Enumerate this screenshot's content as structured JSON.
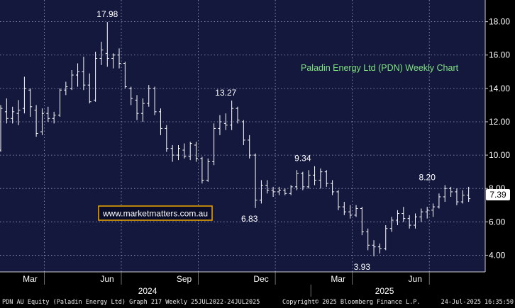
{
  "chart_data": {
    "type": "ohlc",
    "title": "Paladin Energy Ltd (PDN) Weekly Chart",
    "ylim": [
      3.0,
      19.3
    ],
    "y_ticks": [
      {
        "value": 4,
        "label": "4.00"
      },
      {
        "value": 6,
        "label": "6.00"
      },
      {
        "value": 8,
        "label": "8.00"
      },
      {
        "value": 10,
        "label": "10.00"
      },
      {
        "value": 12,
        "label": "12.00"
      },
      {
        "value": 14,
        "label": "14.00"
      },
      {
        "value": 16,
        "label": "16.00"
      },
      {
        "value": 18,
        "label": "18.00"
      }
    ],
    "x_month_labels": [
      {
        "index": 7,
        "label": "Mar"
      },
      {
        "index": 20,
        "label": "Jun"
      },
      {
        "index": 33,
        "label": "Sep"
      },
      {
        "index": 46,
        "label": "Dec"
      },
      {
        "index": 59,
        "label": "Mar"
      },
      {
        "index": 72,
        "label": "Jun"
      }
    ],
    "x_year_labels": [
      {
        "index": 23,
        "label": "2024"
      },
      {
        "index": 63,
        "label": "2025"
      }
    ],
    "last_price": "7.39",
    "annotations": [
      {
        "index": 18,
        "value": 17.98,
        "label": "17.98"
      },
      {
        "index": 38,
        "value": 13.27,
        "label": "13.27"
      },
      {
        "index": 42,
        "value": 6.83,
        "label": "6.83"
      },
      {
        "index": 51,
        "value": 9.34,
        "label": "9.34"
      },
      {
        "index": 61,
        "value": 3.93,
        "label": "3.93"
      },
      {
        "index": 72,
        "value": 8.2,
        "label": "8.20"
      }
    ],
    "bars": [
      {
        "o": 10.3,
        "h": 13.0,
        "l": 10.2,
        "c": 12.8
      },
      {
        "o": 12.6,
        "h": 13.4,
        "l": 11.9,
        "c": 12.2
      },
      {
        "o": 12.2,
        "h": 12.9,
        "l": 11.9,
        "c": 12.6
      },
      {
        "o": 12.5,
        "h": 13.3,
        "l": 11.8,
        "c": 12.7
      },
      {
        "o": 12.8,
        "h": 14.7,
        "l": 12.5,
        "c": 14.0
      },
      {
        "o": 13.9,
        "h": 14.0,
        "l": 12.3,
        "c": 12.9
      },
      {
        "o": 12.7,
        "h": 13.0,
        "l": 11.1,
        "c": 11.3
      },
      {
        "o": 11.4,
        "h": 12.8,
        "l": 11.2,
        "c": 12.5
      },
      {
        "o": 12.5,
        "h": 12.9,
        "l": 12.0,
        "c": 12.2
      },
      {
        "o": 12.2,
        "h": 12.6,
        "l": 11.9,
        "c": 12.4
      },
      {
        "o": 12.4,
        "h": 14.0,
        "l": 12.3,
        "c": 13.9
      },
      {
        "o": 13.9,
        "h": 14.4,
        "l": 13.6,
        "c": 14.1
      },
      {
        "o": 14.0,
        "h": 15.1,
        "l": 13.9,
        "c": 14.8
      },
      {
        "o": 14.8,
        "h": 15.5,
        "l": 14.1,
        "c": 15.0
      },
      {
        "o": 15.0,
        "h": 15.9,
        "l": 13.9,
        "c": 14.2
      },
      {
        "o": 14.2,
        "h": 14.9,
        "l": 13.1,
        "c": 13.2
      },
      {
        "o": 13.3,
        "h": 16.2,
        "l": 13.2,
        "c": 15.8
      },
      {
        "o": 15.8,
        "h": 16.8,
        "l": 15.4,
        "c": 16.3
      },
      {
        "o": 16.1,
        "h": 17.98,
        "l": 15.3,
        "c": 15.8
      },
      {
        "o": 15.8,
        "h": 16.1,
        "l": 15.2,
        "c": 16.0
      },
      {
        "o": 16.0,
        "h": 16.4,
        "l": 15.2,
        "c": 15.5
      },
      {
        "o": 15.5,
        "h": 15.6,
        "l": 14.0,
        "c": 14.1
      },
      {
        "o": 14.0,
        "h": 14.1,
        "l": 13.0,
        "c": 13.4
      },
      {
        "o": 13.3,
        "h": 13.6,
        "l": 12.1,
        "c": 12.5
      },
      {
        "o": 12.5,
        "h": 13.4,
        "l": 12.0,
        "c": 13.1
      },
      {
        "o": 13.1,
        "h": 14.2,
        "l": 12.9,
        "c": 14.0
      },
      {
        "o": 14.0,
        "h": 14.1,
        "l": 12.4,
        "c": 12.6
      },
      {
        "o": 12.6,
        "h": 12.8,
        "l": 11.2,
        "c": 11.6
      },
      {
        "o": 11.6,
        "h": 11.8,
        "l": 10.2,
        "c": 10.4
      },
      {
        "o": 10.4,
        "h": 10.6,
        "l": 9.6,
        "c": 10.0
      },
      {
        "o": 10.0,
        "h": 10.6,
        "l": 9.7,
        "c": 10.4
      },
      {
        "o": 10.3,
        "h": 10.7,
        "l": 9.8,
        "c": 9.9
      },
      {
        "o": 9.9,
        "h": 10.8,
        "l": 9.7,
        "c": 10.7
      },
      {
        "o": 10.6,
        "h": 10.8,
        "l": 9.6,
        "c": 9.8
      },
      {
        "o": 9.8,
        "h": 9.9,
        "l": 8.3,
        "c": 8.5
      },
      {
        "o": 8.5,
        "h": 9.8,
        "l": 8.4,
        "c": 9.6
      },
      {
        "o": 9.6,
        "h": 11.9,
        "l": 9.4,
        "c": 11.6
      },
      {
        "o": 11.6,
        "h": 12.4,
        "l": 11.2,
        "c": 12.0
      },
      {
        "o": 11.9,
        "h": 12.5,
        "l": 11.5,
        "c": 11.8
      },
      {
        "o": 11.8,
        "h": 13.27,
        "l": 11.5,
        "c": 12.8
      },
      {
        "o": 12.8,
        "h": 12.9,
        "l": 11.9,
        "c": 12.1
      },
      {
        "o": 12.0,
        "h": 12.1,
        "l": 10.6,
        "c": 10.9
      },
      {
        "o": 10.9,
        "h": 11.2,
        "l": 9.8,
        "c": 10.0
      },
      {
        "o": 10.0,
        "h": 10.1,
        "l": 6.83,
        "c": 7.3
      },
      {
        "o": 7.3,
        "h": 8.5,
        "l": 7.1,
        "c": 8.2
      },
      {
        "o": 8.2,
        "h": 8.5,
        "l": 7.7,
        "c": 7.9
      },
      {
        "o": 7.9,
        "h": 8.1,
        "l": 7.5,
        "c": 7.8
      },
      {
        "o": 7.8,
        "h": 8.1,
        "l": 7.6,
        "c": 7.9
      },
      {
        "o": 7.9,
        "h": 8.0,
        "l": 7.6,
        "c": 7.7
      },
      {
        "o": 7.7,
        "h": 8.2,
        "l": 7.6,
        "c": 8.1
      },
      {
        "o": 8.1,
        "h": 9.1,
        "l": 7.9,
        "c": 8.9
      },
      {
        "o": 8.9,
        "h": 9.0,
        "l": 7.9,
        "c": 8.1
      },
      {
        "o": 8.1,
        "h": 9.1,
        "l": 8.0,
        "c": 8.8
      },
      {
        "o": 8.8,
        "h": 9.34,
        "l": 8.2,
        "c": 8.5
      },
      {
        "o": 8.5,
        "h": 9.2,
        "l": 8.0,
        "c": 9.0
      },
      {
        "o": 9.0,
        "h": 9.1,
        "l": 8.1,
        "c": 8.3
      },
      {
        "o": 8.3,
        "h": 8.5,
        "l": 7.6,
        "c": 7.8
      },
      {
        "o": 7.8,
        "h": 7.9,
        "l": 6.7,
        "c": 6.9
      },
      {
        "o": 6.9,
        "h": 7.2,
        "l": 6.4,
        "c": 6.6
      },
      {
        "o": 6.6,
        "h": 7.0,
        "l": 6.2,
        "c": 6.4
      },
      {
        "o": 6.4,
        "h": 7.0,
        "l": 6.3,
        "c": 6.8
      },
      {
        "o": 6.8,
        "h": 6.9,
        "l": 5.2,
        "c": 5.4
      },
      {
        "o": 5.4,
        "h": 5.6,
        "l": 4.3,
        "c": 4.6
      },
      {
        "o": 4.6,
        "h": 4.9,
        "l": 3.93,
        "c": 4.5
      },
      {
        "o": 4.5,
        "h": 4.7,
        "l": 4.1,
        "c": 4.4
      },
      {
        "o": 4.4,
        "h": 5.8,
        "l": 4.3,
        "c": 5.6
      },
      {
        "o": 5.6,
        "h": 6.3,
        "l": 5.4,
        "c": 6.1
      },
      {
        "o": 6.1,
        "h": 6.7,
        "l": 5.8,
        "c": 6.5
      },
      {
        "o": 6.5,
        "h": 6.9,
        "l": 6.0,
        "c": 6.2
      },
      {
        "o": 6.2,
        "h": 6.4,
        "l": 5.6,
        "c": 5.8
      },
      {
        "o": 5.8,
        "h": 6.5,
        "l": 5.6,
        "c": 6.3
      },
      {
        "o": 6.3,
        "h": 6.8,
        "l": 6.0,
        "c": 6.6
      },
      {
        "o": 6.6,
        "h": 6.9,
        "l": 6.2,
        "c": 6.7
      },
      {
        "o": 6.7,
        "h": 7.1,
        "l": 6.3,
        "c": 6.9
      },
      {
        "o": 6.9,
        "h": 7.7,
        "l": 6.8,
        "c": 7.5
      },
      {
        "o": 7.5,
        "h": 8.2,
        "l": 7.2,
        "c": 8.0
      },
      {
        "o": 8.0,
        "h": 8.1,
        "l": 7.5,
        "c": 7.8
      },
      {
        "o": 7.8,
        "h": 8.0,
        "l": 7.0,
        "c": 7.2
      },
      {
        "o": 7.2,
        "h": 7.9,
        "l": 7.1,
        "c": 7.6
      },
      {
        "o": 7.6,
        "h": 8.1,
        "l": 7.2,
        "c": 7.39
      }
    ]
  },
  "watermark": "www.marketmatters.com.au",
  "footer": {
    "left": "PDN AU Equity (Paladin Energy Ltd) Graph 217  Weekly 25JUL2022-24JUL2025",
    "center": "Copyright© 2025 Bloomberg Finance L.P.",
    "right": "24-Jul-2025 16:35:50"
  },
  "colors": {
    "background": "#000000",
    "plot_background": "#15183d",
    "bar": "#ffffff",
    "title": "#7fe57f",
    "watermark_border": "#f2a900",
    "last_price_badge": "#ffffff"
  }
}
